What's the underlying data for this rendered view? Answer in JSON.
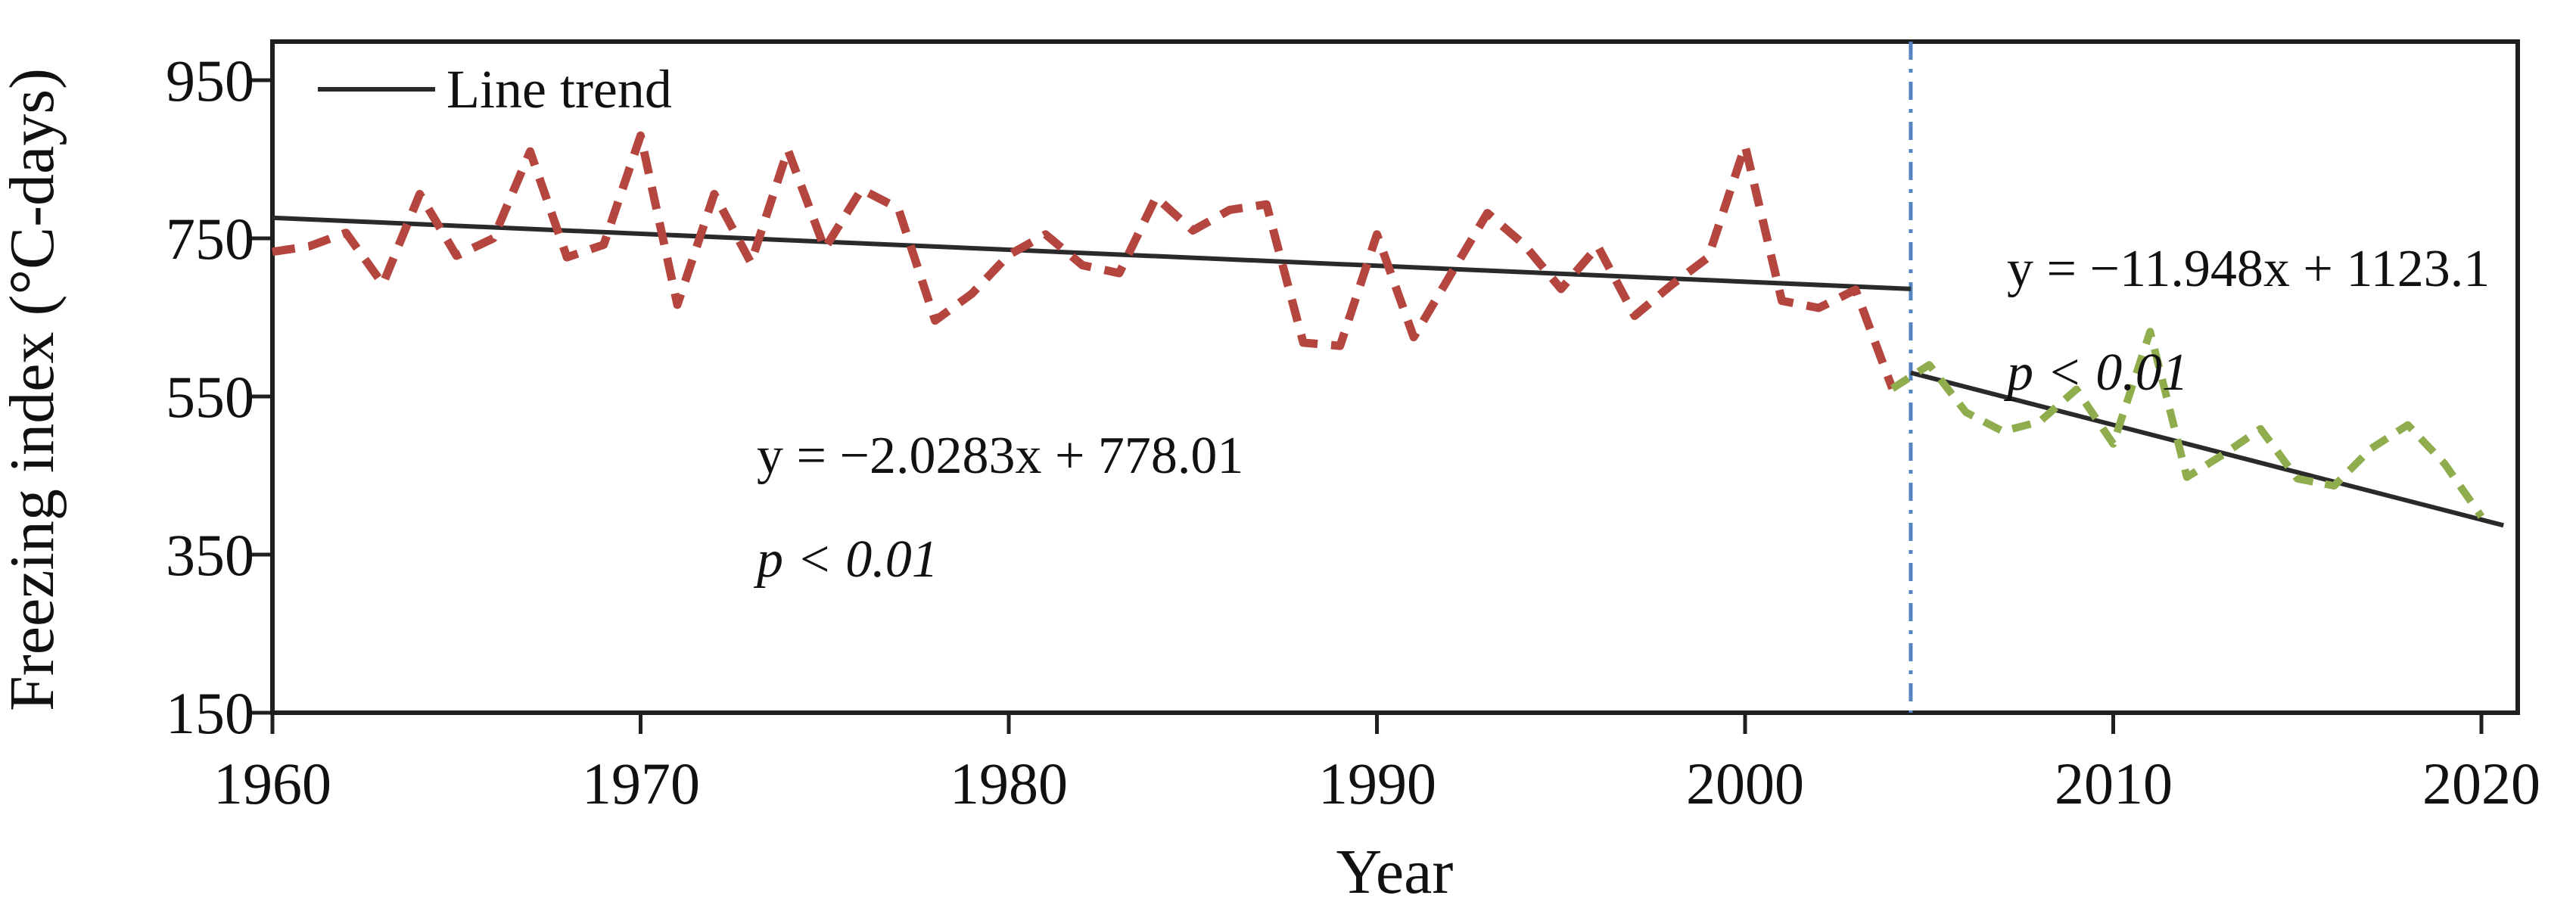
{
  "axes": {
    "xlabel": "Year",
    "ylabel": "Freezing index (°C-days)"
  },
  "legend": {
    "label": "Line trend"
  },
  "annotations": {
    "left": {
      "line1": "y = −2.0283x + 778.01",
      "line2": "p < 0.01"
    },
    "right": {
      "line1": "y = −11.948x + 1123.1",
      "line2": "p < 0.01"
    }
  },
  "colors": {
    "series_pre_break": "#b4463f",
    "series_post_break": "#8fad4d",
    "trend_line": "#2a2a2a",
    "break_line": "#5585c0",
    "axis": "#1f1f1f"
  },
  "chart_data": {
    "type": "line",
    "title": "",
    "xlabel": "Year",
    "ylabel": "Freezing index (°C-days)",
    "xlim": [
      1959.95,
      2021.0
    ],
    "ylim": [
      150,
      999
    ],
    "grid": false,
    "legend_position": "top-left",
    "x_ticks": [
      1960,
      1970,
      1980,
      1990,
      2000,
      2010,
      2020
    ],
    "y_ticks": [
      950,
      750,
      550,
      350,
      150
    ],
    "break_year": 2004.5,
    "series": [
      {
        "name": "freezing-index-1960-2004",
        "style": "dashed",
        "color_key": "series_pre_break",
        "years": [
          1960,
          1961,
          1962,
          1963,
          1964,
          1965,
          1966,
          1967,
          1968,
          1969,
          1970,
          1971,
          1972,
          1973,
          1974,
          1975,
          1976,
          1977,
          1978,
          1979,
          1980,
          1981,
          1982,
          1983,
          1984,
          1985,
          1986,
          1987,
          1988,
          1989,
          1990,
          1991,
          1992,
          1993,
          1994,
          1995,
          1996,
          1997,
          1998,
          1999,
          2000,
          2001,
          2002,
          2003,
          2004
        ],
        "values": [
          733,
          740,
          757,
          692,
          806,
          728,
          750,
          860,
          726,
          742,
          880,
          666,
          806,
          719,
          862,
          737,
          812,
          788,
          646,
          680,
          729,
          755,
          716,
          706,
          802,
          760,
          786,
          793,
          618,
          614,
          755,
          625,
          704,
          782,
          742,
          686,
          740,
          652,
          691,
          726,
          867,
          671,
          662,
          685,
          560
        ]
      },
      {
        "name": "freezing-index-2004-2020",
        "style": "dashed",
        "color_key": "series_post_break",
        "years": [
          2004,
          2005,
          2006,
          2007,
          2008,
          2009,
          2010,
          2011,
          2012,
          2013,
          2014,
          2015,
          2016,
          2017,
          2018,
          2019,
          2020
        ],
        "values": [
          560,
          590,
          530,
          506,
          518,
          559,
          490,
          632,
          448,
          477,
          509,
          446,
          437,
          484,
          514,
          465,
          398
        ]
      }
    ],
    "trend_segments": [
      {
        "name": "trend-1960-2004",
        "equation": "y = −2.0283x + 778.01",
        "p_value": "p < 0.01",
        "x1": 1960,
        "y1": 776,
        "x2": 2004.5,
        "y2": 686
      },
      {
        "name": "trend-2004-2020",
        "equation": "y = −11.948x + 1123.1",
        "p_value": "p < 0.01",
        "x1": 2004.5,
        "y1": 580,
        "x2": 2020.6,
        "y2": 387
      }
    ]
  }
}
